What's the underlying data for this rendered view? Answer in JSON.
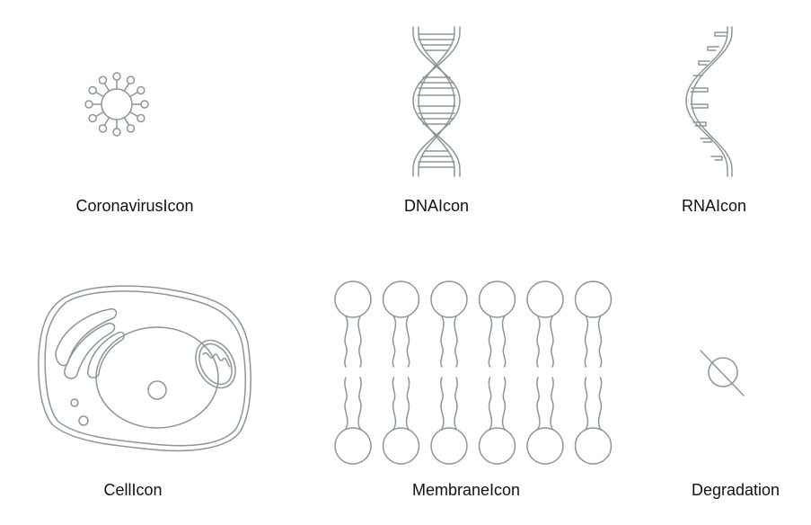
{
  "colors": {
    "stroke": "#8b9797",
    "text": "#111111",
    "background": "#ffffff"
  },
  "icons": [
    {
      "name": "coronavirus-icon",
      "label": "CoronavirusIcon"
    },
    {
      "name": "dna-icon",
      "label": "DNAIcon"
    },
    {
      "name": "rna-icon",
      "label": "RNAIcon"
    },
    {
      "name": "cell-icon",
      "label": "CellIcon"
    },
    {
      "name": "membrane-icon",
      "label": "MembraneIcon"
    },
    {
      "name": "degradation-icon",
      "label": "Degradation"
    }
  ]
}
